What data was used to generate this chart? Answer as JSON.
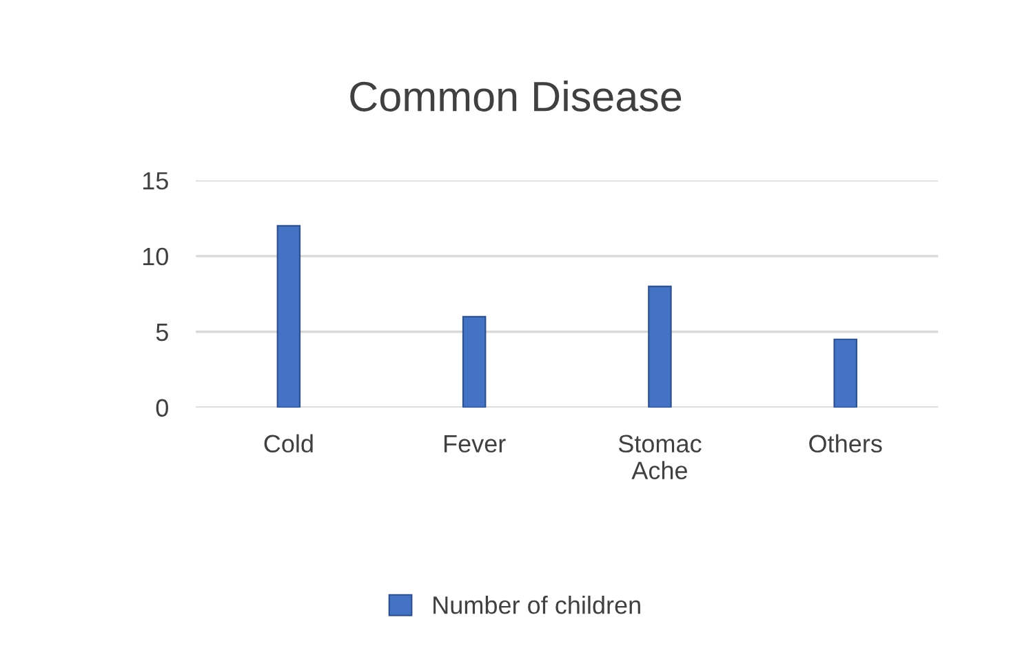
{
  "chart_data": {
    "type": "bar",
    "title": "Common Disease",
    "categories": [
      "Cold",
      "Fever",
      "Stomac Ache",
      "Others"
    ],
    "series": [
      {
        "name": "Number of children",
        "color": "#4472c4",
        "values": [
          12,
          6,
          8,
          4.5
        ]
      }
    ],
    "ylim": [
      0,
      15
    ],
    "yticks": [
      0,
      5,
      10,
      15
    ],
    "grid": "y",
    "legend": "bottom"
  }
}
